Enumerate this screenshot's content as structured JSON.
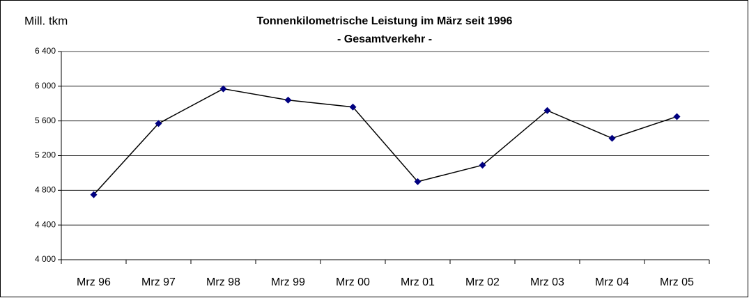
{
  "chart_data": {
    "type": "line",
    "title": "Tonnenkilometrische Leistung im März seit 1996",
    "subtitle": "- Gesamtverkehr -",
    "y_label": "Mill. tkm",
    "categories": [
      "Mrz 96",
      "Mrz 97",
      "Mrz 98",
      "Mrz 99",
      "Mrz 00",
      "Mrz 01",
      "Mrz 02",
      "Mrz 03",
      "Mrz 04",
      "Mrz 05"
    ],
    "values": [
      4750,
      5570,
      5970,
      5840,
      5760,
      4900,
      5090,
      5720,
      5400,
      5650
    ],
    "color": "#000080",
    "line_color": "#000000",
    "ylim": [
      4000,
      6400
    ],
    "yticks": [
      {
        "value": 4000,
        "label": "4 000"
      },
      {
        "value": 4400,
        "label": "4 400"
      },
      {
        "value": 4800,
        "label": "4 800"
      },
      {
        "value": 5200,
        "label": "5 200"
      },
      {
        "value": 5600,
        "label": "5 600"
      },
      {
        "value": 6000,
        "label": "6 000"
      },
      {
        "value": 6400,
        "label": "6 400"
      }
    ],
    "grid": true
  }
}
